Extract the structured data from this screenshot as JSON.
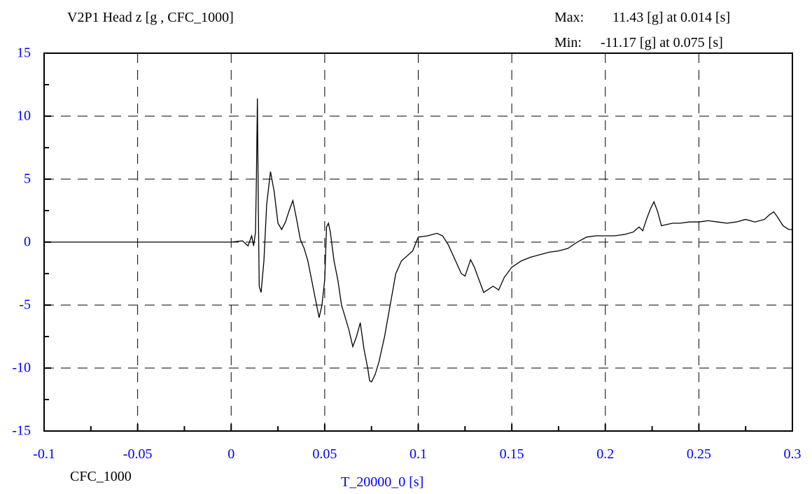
{
  "header": {
    "title": "V2P1 Head z [g , CFC_1000]",
    "max_label": "Max:",
    "max_value": "11.43 [g] at 0.014 [s]",
    "min_label": "Min:",
    "min_value": "-11.17 [g] at 0.075 [s]"
  },
  "footer": {
    "filter_label": "CFC_1000"
  },
  "chart_data": {
    "type": "line",
    "xlabel": "T_20000_0 [s]",
    "ylabel": "",
    "xlim": [
      -0.1,
      0.3
    ],
    "ylim": [
      -15,
      15
    ],
    "x_ticks": [
      "-0.1",
      "-0.05",
      "0",
      "0.05",
      "0.1",
      "0.15",
      "0.2",
      "0.25",
      "0.3"
    ],
    "y_ticks": [
      "15",
      "10",
      "5",
      "0",
      "-5",
      "-10",
      "-15"
    ],
    "grid": true,
    "colors": {
      "line": "#000000",
      "tick_labels": "#0000ff",
      "axis_label": "#0000ff"
    },
    "series": [
      {
        "x": [
          -0.1,
          -0.05,
          0.0,
          0.006,
          0.009,
          0.011,
          0.012,
          0.013,
          0.0135,
          0.014,
          0.0145,
          0.015,
          0.016,
          0.0175,
          0.019,
          0.021,
          0.023,
          0.025,
          0.027,
          0.029,
          0.031,
          0.033,
          0.035,
          0.037,
          0.039,
          0.041,
          0.043,
          0.045,
          0.047,
          0.0485,
          0.05,
          0.051,
          0.052,
          0.053,
          0.055,
          0.057,
          0.059,
          0.061,
          0.063,
          0.065,
          0.067,
          0.069,
          0.071,
          0.073,
          0.074,
          0.075,
          0.077,
          0.079,
          0.082,
          0.085,
          0.088,
          0.091,
          0.094,
          0.097,
          0.1,
          0.105,
          0.11,
          0.113,
          0.116,
          0.12,
          0.123,
          0.125,
          0.128,
          0.13,
          0.133,
          0.135,
          0.138,
          0.14,
          0.143,
          0.146,
          0.15,
          0.155,
          0.16,
          0.165,
          0.17,
          0.175,
          0.18,
          0.185,
          0.19,
          0.195,
          0.2,
          0.205,
          0.21,
          0.215,
          0.218,
          0.22,
          0.222,
          0.224,
          0.226,
          0.228,
          0.23,
          0.233,
          0.236,
          0.24,
          0.245,
          0.25,
          0.255,
          0.26,
          0.265,
          0.27,
          0.275,
          0.28,
          0.285,
          0.288,
          0.29,
          0.292,
          0.295,
          0.298,
          0.3
        ],
        "y": [
          0,
          0,
          0,
          0.1,
          -0.3,
          0.5,
          -0.3,
          0.8,
          5.0,
          11.4,
          3.0,
          -3.5,
          -4.0,
          -1.5,
          3.0,
          5.6,
          4.0,
          1.5,
          1.0,
          1.6,
          2.5,
          3.3,
          1.8,
          0.2,
          -0.5,
          -1.5,
          -3.0,
          -4.5,
          -6.0,
          -5.0,
          -3.0,
          1.2,
          1.5,
          0.8,
          -1.5,
          -3.0,
          -5.0,
          -6.0,
          -7.0,
          -8.3,
          -7.5,
          -6.4,
          -8.5,
          -10.0,
          -11.0,
          -11.1,
          -10.5,
          -9.5,
          -7.5,
          -5.0,
          -2.5,
          -1.5,
          -1.1,
          -0.7,
          0.4,
          0.5,
          0.7,
          0.5,
          -0.2,
          -1.5,
          -2.5,
          -2.7,
          -1.4,
          -2.0,
          -3.2,
          -4.0,
          -3.7,
          -3.5,
          -3.8,
          -2.8,
          -2.0,
          -1.5,
          -1.2,
          -1.0,
          -0.8,
          -0.7,
          -0.5,
          0.0,
          0.4,
          0.5,
          0.5,
          0.5,
          0.6,
          0.8,
          1.2,
          0.9,
          1.8,
          2.6,
          3.2,
          2.4,
          1.3,
          1.4,
          1.5,
          1.5,
          1.6,
          1.6,
          1.7,
          1.6,
          1.5,
          1.6,
          1.8,
          1.6,
          1.8,
          2.2,
          2.4,
          2.0,
          1.3,
          1.0,
          1.0
        ]
      }
    ]
  }
}
